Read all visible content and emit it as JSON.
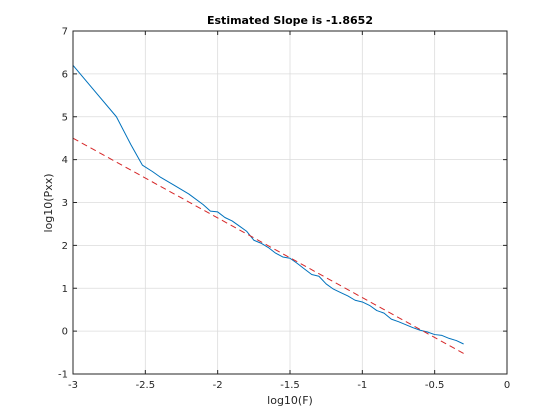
{
  "chart_data": {
    "type": "line",
    "title": "Estimated Slope is -1.8652",
    "xlabel": "log10(F)",
    "ylabel": "log10(Pxx)",
    "xlim": [
      -3,
      0
    ],
    "ylim": [
      -1,
      7
    ],
    "xticks": [
      -3,
      -2.5,
      -2,
      -1.5,
      -1,
      -0.5,
      0
    ],
    "xtick_labels": [
      "-3",
      "-2.5",
      "-2",
      "-1.5",
      "-1",
      "-0.5",
      "0"
    ],
    "yticks": [
      -1,
      0,
      1,
      2,
      3,
      4,
      5,
      6,
      7
    ],
    "ytick_labels": [
      "-1",
      "0",
      "1",
      "2",
      "3",
      "4",
      "5",
      "6",
      "7"
    ],
    "grid": true,
    "series": [
      {
        "color": "#0072bd",
        "style": "solid",
        "x": [
          -3.0,
          -2.85,
          -2.7,
          -2.6,
          -2.52,
          -2.45,
          -2.4,
          -2.3,
          -2.2,
          -2.1,
          -2.05,
          -2.0,
          -1.95,
          -1.9,
          -1.85,
          -1.8,
          -1.75,
          -1.7,
          -1.65,
          -1.6,
          -1.55,
          -1.5,
          -1.45,
          -1.4,
          -1.35,
          -1.3,
          -1.25,
          -1.2,
          -1.15,
          -1.1,
          -1.05,
          -1.0,
          -0.95,
          -0.9,
          -0.85,
          -0.8,
          -0.75,
          -0.7,
          -0.65,
          -0.6,
          -0.55,
          -0.5,
          -0.45,
          -0.4,
          -0.35,
          -0.3
        ],
        "y": [
          6.2,
          5.6,
          5.0,
          4.35,
          3.87,
          3.72,
          3.6,
          3.4,
          3.2,
          2.95,
          2.8,
          2.78,
          2.65,
          2.57,
          2.45,
          2.33,
          2.12,
          2.05,
          1.95,
          1.82,
          1.73,
          1.7,
          1.58,
          1.45,
          1.32,
          1.28,
          1.1,
          0.98,
          0.9,
          0.82,
          0.72,
          0.68,
          0.6,
          0.48,
          0.42,
          0.28,
          0.22,
          0.15,
          0.08,
          0.02,
          -0.02,
          -0.08,
          -0.1,
          -0.17,
          -0.22,
          -0.3
        ]
      },
      {
        "color": "#d62728",
        "style": "dashed",
        "x": [
          -3.0,
          -0.3
        ],
        "y": [
          4.5,
          -0.52
        ]
      }
    ]
  }
}
